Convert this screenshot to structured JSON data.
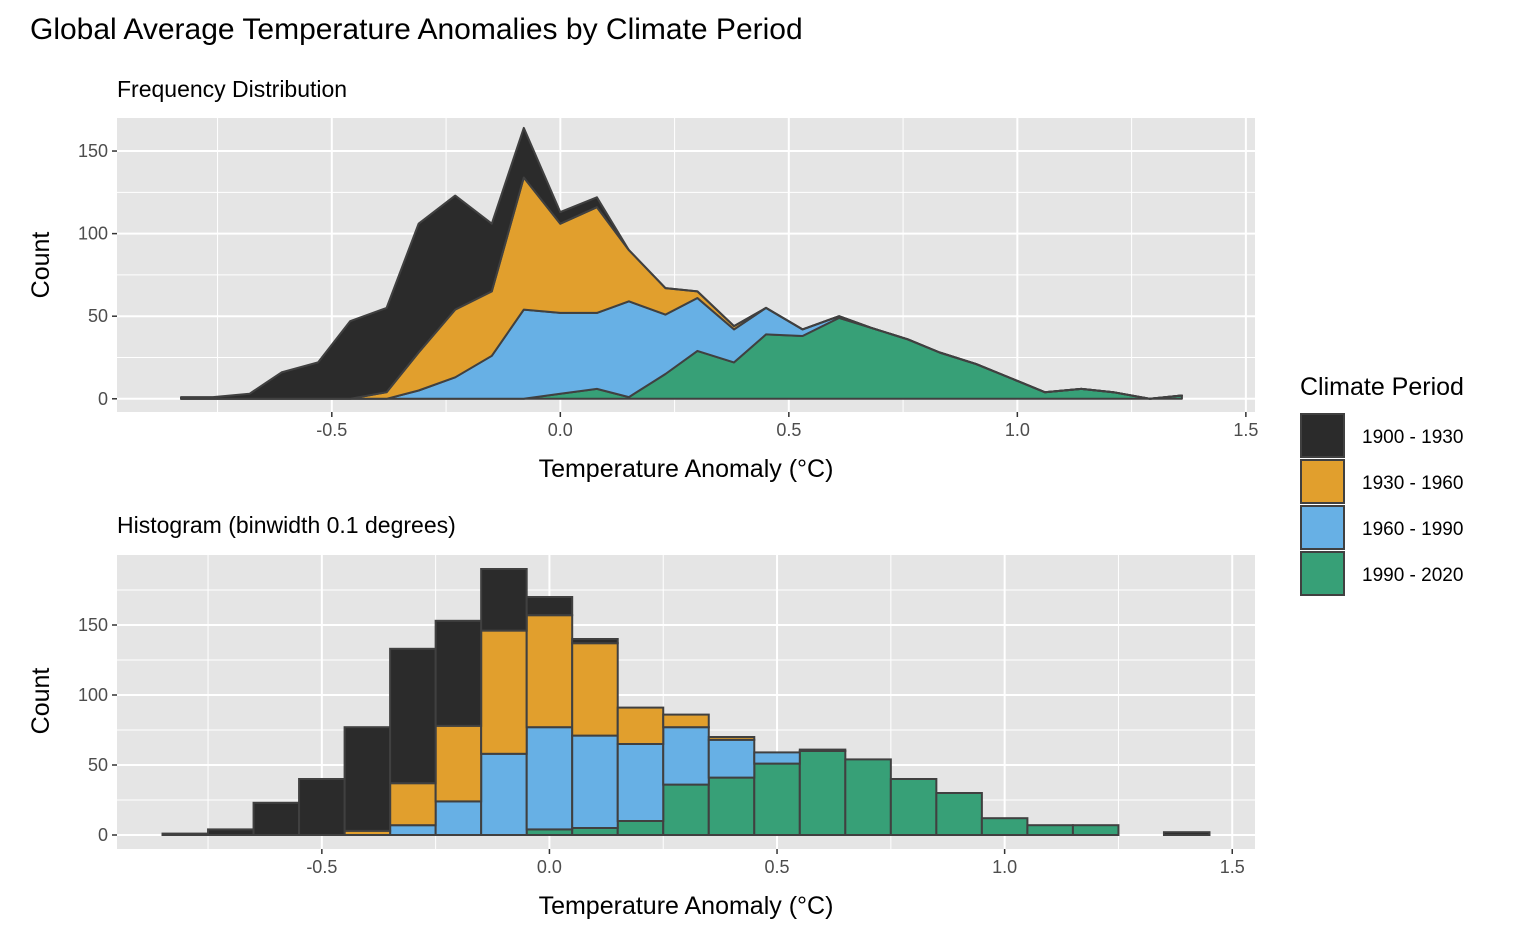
{
  "title": "Global Average Temperature Anomalies by Climate Period",
  "legend": {
    "title": "Climate Period",
    "entries": [
      "1900 - 1930",
      "1930 - 1960",
      "1960 - 1990",
      "1990 - 2020"
    ]
  },
  "colors": {
    "panel_bg": "#e5e5e5",
    "grid": "#ffffff",
    "outline": "#404040",
    "series": [
      "#2b2b2b",
      "#e19f2d",
      "#67b0e5",
      "#37a077"
    ]
  },
  "chart_data": [
    {
      "type": "area",
      "subtitle": "Frequency Distribution",
      "xlabel": "Temperature Anomaly (°C)",
      "ylabel": "Count",
      "xlim": [
        -0.97,
        1.52
      ],
      "ylim": [
        -8,
        170
      ],
      "x_ticks": [
        -0.5,
        0.0,
        0.5,
        1.0,
        1.5
      ],
      "x_tick_labels": [
        "-0.5",
        "0.0",
        "0.5",
        "1.0",
        "1.5"
      ],
      "y_ticks": [
        0,
        50,
        100,
        150
      ],
      "y_tick_labels": [
        "0",
        "50",
        "100",
        "150"
      ],
      "stacked": true,
      "grid": true,
      "legend_position": "right",
      "x": [
        -0.83,
        -0.76,
        -0.68,
        -0.61,
        -0.53,
        -0.46,
        -0.38,
        -0.31,
        -0.23,
        -0.15,
        -0.08,
        0.0,
        0.08,
        0.15,
        0.23,
        0.3,
        0.38,
        0.45,
        0.53,
        0.61,
        0.68,
        0.76,
        0.83,
        0.91,
        0.99,
        1.06,
        1.14,
        1.21,
        1.29,
        1.36
      ],
      "series": [
        {
          "name": "1990 - 2020",
          "values": [
            0,
            0,
            0,
            0,
            0,
            0,
            0,
            0,
            0,
            0,
            0,
            3,
            6,
            1,
            15,
            29,
            22,
            39,
            38,
            49,
            43,
            36,
            28,
            21,
            12,
            4,
            6,
            4,
            0,
            2
          ]
        },
        {
          "name": "1960 - 1990",
          "values": [
            0,
            0,
            0,
            0,
            0,
            0,
            0,
            5,
            13,
            26,
            54,
            49,
            46,
            58,
            36,
            32,
            20,
            16,
            4,
            1,
            0,
            0,
            0,
            0,
            0,
            0,
            0,
            0,
            0,
            0
          ]
        },
        {
          "name": "1930 - 1960",
          "values": [
            0,
            0,
            0,
            0,
            0,
            0,
            4,
            23,
            41,
            39,
            80,
            54,
            64,
            31,
            16,
            4,
            2,
            0,
            0,
            0,
            0,
            0,
            0,
            0,
            0,
            0,
            0,
            0,
            0,
            0
          ]
        },
        {
          "name": "1900 - 1930",
          "values": [
            1,
            1,
            3,
            16,
            22,
            47,
            51,
            78,
            69,
            41,
            30,
            7,
            6,
            0,
            0,
            0,
            0,
            0,
            0,
            0,
            0,
            0,
            0,
            0,
            0,
            0,
            0,
            0,
            0,
            0
          ]
        }
      ]
    },
    {
      "type": "bar",
      "subtitle": "Histogram (binwidth 0.1 degrees)",
      "xlabel": "Temperature Anomaly (°C)",
      "ylabel": "Count",
      "xlim": [
        -0.95,
        1.55
      ],
      "ylim": [
        -10,
        200
      ],
      "x_ticks": [
        -0.5,
        0.0,
        0.5,
        1.0,
        1.5
      ],
      "x_tick_labels": [
        "-0.5",
        "0.0",
        "0.5",
        "1.0",
        "1.5"
      ],
      "y_ticks": [
        0,
        50,
        100,
        150
      ],
      "y_tick_labels": [
        "0",
        "50",
        "100",
        "150"
      ],
      "binwidth": 0.1,
      "stacked": true,
      "grid": true,
      "legend_position": "right",
      "x": [
        -0.8,
        -0.7,
        -0.6,
        -0.5,
        -0.4,
        -0.3,
        -0.2,
        -0.1,
        0.0,
        0.1,
        0.2,
        0.3,
        0.4,
        0.5,
        0.6,
        0.7,
        0.8,
        0.9,
        1.0,
        1.1,
        1.2,
        1.3,
        1.4
      ],
      "series": [
        {
          "name": "1990 - 2020",
          "values": [
            0,
            0,
            0,
            0,
            0,
            0,
            0,
            0,
            4,
            5,
            10,
            36,
            41,
            51,
            60,
            54,
            40,
            30,
            12,
            7,
            7,
            0,
            0
          ]
        },
        {
          "name": "1960 - 1990",
          "values": [
            0,
            0,
            0,
            0,
            0,
            7,
            24,
            58,
            73,
            66,
            55,
            41,
            27,
            8,
            1,
            0,
            0,
            0,
            0,
            0,
            0,
            0,
            0
          ]
        },
        {
          "name": "1930 - 1960",
          "values": [
            0,
            0,
            0,
            0,
            3,
            30,
            54,
            88,
            80,
            66,
            26,
            9,
            2,
            0,
            0,
            0,
            0,
            0,
            0,
            0,
            0,
            0,
            0
          ]
        },
        {
          "name": "1900 - 1930",
          "values": [
            1,
            4,
            23,
            40,
            74,
            96,
            75,
            44,
            13,
            3,
            0,
            0,
            0,
            0,
            0,
            0,
            0,
            0,
            0,
            0,
            0,
            0,
            2
          ]
        }
      ]
    }
  ]
}
